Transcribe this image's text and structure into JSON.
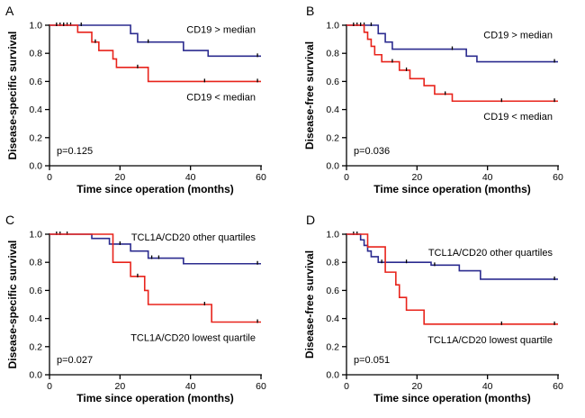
{
  "figure": {
    "colors": {
      "series_high": "#2b2b8f",
      "series_low": "#e8231b",
      "axis": "#000000"
    }
  },
  "chart_data": [
    {
      "panel": "A",
      "type": "line",
      "style": "kaplan-meier step",
      "ylabel": "Disease-specific survival",
      "xlabel": "Time since operation (months)",
      "xlim": [
        0,
        60
      ],
      "ylim": [
        0,
        1.0
      ],
      "xticks": [
        0,
        20,
        40,
        60
      ],
      "xtick_labels": [
        "0",
        "20",
        "40",
        "60"
      ],
      "yticks": [
        0,
        0.2,
        0.4,
        0.6,
        0.8,
        1.0
      ],
      "ytick_labels": [
        "0.0",
        "0.2",
        "0.4",
        "0.6",
        "0.8",
        "1.0"
      ],
      "annotation": "p=0.125",
      "series": [
        {
          "name": "CD19 > median",
          "color": "#2b2b8f",
          "label_side": "above",
          "x": [
            0,
            23,
            25,
            29,
            38,
            45,
            60
          ],
          "y": [
            1.0,
            0.94,
            0.88,
            0.88,
            0.82,
            0.78,
            0.78
          ],
          "censored": [
            [
              3,
              1.0
            ],
            [
              4,
              1.0
            ],
            [
              5,
              1.0
            ],
            [
              6,
              1.0
            ],
            [
              9,
              1.0
            ],
            [
              28,
              0.88
            ],
            [
              59,
              0.78
            ]
          ]
        },
        {
          "name": "CD19 < median",
          "color": "#e8231b",
          "label_side": "below",
          "x": [
            0,
            8,
            12,
            14,
            18,
            19,
            24,
            28,
            60
          ],
          "y": [
            1.0,
            0.95,
            0.88,
            0.82,
            0.76,
            0.7,
            0.7,
            0.6,
            0.6
          ],
          "censored": [
            [
              2,
              1.0
            ],
            [
              4,
              1.0
            ],
            [
              13,
              0.88
            ],
            [
              25,
              0.7
            ],
            [
              44,
              0.6
            ],
            [
              59,
              0.6
            ]
          ]
        }
      ]
    },
    {
      "panel": "B",
      "type": "line",
      "style": "kaplan-meier step",
      "ylabel": "Disease-free survival",
      "xlabel": "Time since operation (months)",
      "xlim": [
        0,
        60
      ],
      "ylim": [
        0,
        1.0
      ],
      "xticks": [
        0,
        20,
        40,
        60
      ],
      "xtick_labels": [
        "0",
        "20",
        "40",
        "60"
      ],
      "yticks": [
        0,
        0.2,
        0.4,
        0.6,
        0.8,
        1.0
      ],
      "ytick_labels": [
        "0.0",
        "0.2",
        "0.4",
        "0.6",
        "0.8",
        "1.0"
      ],
      "annotation": "p=0.036",
      "series": [
        {
          "name": "CD19 > median",
          "color": "#2b2b8f",
          "label_side": "above",
          "x": [
            0,
            9,
            11,
            13,
            34,
            37,
            60
          ],
          "y": [
            1.0,
            0.94,
            0.88,
            0.83,
            0.78,
            0.74,
            0.74
          ],
          "censored": [
            [
              3,
              1.0
            ],
            [
              5,
              1.0
            ],
            [
              7,
              1.0
            ],
            [
              30,
              0.83
            ],
            [
              59,
              0.74
            ]
          ]
        },
        {
          "name": "CD19 < median",
          "color": "#e8231b",
          "label_side": "below",
          "x": [
            0,
            5,
            6,
            7,
            8,
            10,
            15,
            18,
            22,
            25,
            30,
            60
          ],
          "y": [
            1.0,
            0.95,
            0.9,
            0.85,
            0.79,
            0.74,
            0.68,
            0.62,
            0.57,
            0.51,
            0.46,
            0.46
          ],
          "censored": [
            [
              2,
              1.0
            ],
            [
              4,
              1.0
            ],
            [
              13,
              0.74
            ],
            [
              17,
              0.68
            ],
            [
              28,
              0.51
            ],
            [
              44,
              0.46
            ],
            [
              59,
              0.46
            ]
          ]
        }
      ]
    },
    {
      "panel": "C",
      "type": "line",
      "style": "kaplan-meier step",
      "ylabel": "Disease-specific survival",
      "xlabel": "Time since operation (months)",
      "xlim": [
        0,
        60
      ],
      "ylim": [
        0,
        1.0
      ],
      "xticks": [
        0,
        20,
        40,
        60
      ],
      "xtick_labels": [
        "0",
        "20",
        "40",
        "60"
      ],
      "yticks": [
        0,
        0.2,
        0.4,
        0.6,
        0.8,
        1.0
      ],
      "ytick_labels": [
        "0.0",
        "0.2",
        "0.4",
        "0.6",
        "0.8",
        "1.0"
      ],
      "annotation": "p=0.027",
      "series": [
        {
          "name": "TCL1A/CD20 other quartiles",
          "color": "#2b2b8f",
          "label_side": "above",
          "x": [
            0,
            12,
            17,
            23,
            28,
            38,
            60
          ],
          "y": [
            1.0,
            0.97,
            0.93,
            0.88,
            0.83,
            0.79,
            0.79
          ],
          "censored": [
            [
              2,
              1.0
            ],
            [
              3,
              1.0
            ],
            [
              5,
              1.0
            ],
            [
              20,
              0.93
            ],
            [
              29,
              0.83
            ],
            [
              31,
              0.83
            ],
            [
              59,
              0.79
            ]
          ]
        },
        {
          "name": "TCL1A/CD20 lowest quartile",
          "color": "#e8231b",
          "label_side": "below",
          "x": [
            0,
            18,
            23,
            27,
            28,
            46,
            60
          ],
          "y": [
            1.0,
            0.8,
            0.7,
            0.6,
            0.5,
            0.375,
            0.375
          ],
          "censored": [
            [
              25,
              0.7
            ],
            [
              44,
              0.5
            ],
            [
              59,
              0.375
            ]
          ]
        }
      ]
    },
    {
      "panel": "D",
      "type": "line",
      "style": "kaplan-meier step",
      "ylabel": "Disease-free survival",
      "xlabel": "Time since operation (months)",
      "xlim": [
        0,
        60
      ],
      "ylim": [
        0,
        1.0
      ],
      "xticks": [
        0,
        20,
        40,
        60
      ],
      "xtick_labels": [
        "0",
        "20",
        "40",
        "60"
      ],
      "yticks": [
        0,
        0.2,
        0.4,
        0.6,
        0.8,
        1.0
      ],
      "ytick_labels": [
        "0.0",
        "0.2",
        "0.4",
        "0.6",
        "0.8",
        "1.0"
      ],
      "annotation": "p=0.051",
      "series": [
        {
          "name": "TCL1A/CD20 other quartiles",
          "color": "#2b2b8f",
          "label_side": "above",
          "x": [
            0,
            4,
            5,
            6,
            7,
            9,
            24,
            32,
            38,
            60
          ],
          "y": [
            1.0,
            0.96,
            0.92,
            0.88,
            0.84,
            0.8,
            0.78,
            0.74,
            0.68,
            0.68
          ],
          "censored": [
            [
              2,
              1.0
            ],
            [
              3,
              1.0
            ],
            [
              10,
              0.8
            ],
            [
              17,
              0.8
            ],
            [
              25,
              0.78
            ],
            [
              59,
              0.68
            ]
          ]
        },
        {
          "name": "TCL1A/CD20 lowest quartile",
          "color": "#e8231b",
          "label_side": "below",
          "x": [
            0,
            6,
            11,
            14,
            15,
            17,
            22,
            60
          ],
          "y": [
            1.0,
            0.91,
            0.73,
            0.64,
            0.55,
            0.46,
            0.36,
            0.36
          ],
          "censored": [
            [
              44,
              0.36
            ],
            [
              59,
              0.36
            ]
          ]
        }
      ]
    }
  ]
}
